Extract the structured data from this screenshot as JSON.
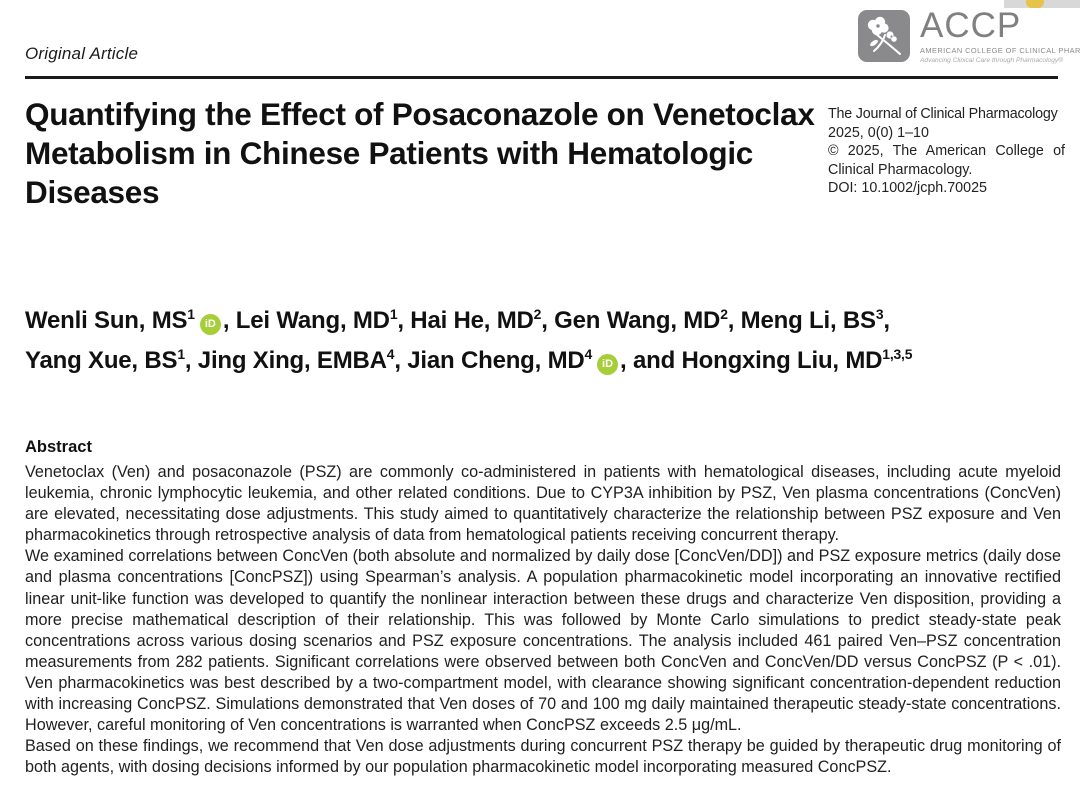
{
  "page": {
    "kicker": "Original Article"
  },
  "logo": {
    "acronym": "ACCP",
    "org_name": "American College of Clinical Pharmacology",
    "tagline": "Advancing Clinical Care through Pharmacology®",
    "gray": "#8a8a8c"
  },
  "title": "Quantifying the Effect of Posaconazole on Venetoclax Metabolism in Chinese Patients with Hematologic Diseases",
  "journal_info": {
    "name": "The Journal of Clinical Pharmacology",
    "issue": "2025, 0(0) 1–10",
    "copyright": "© 2025, The American College of Clinical Pharmacology.",
    "doi": "DOI: 10.1002/jcph.70025"
  },
  "authors": {
    "orcid_color": "#A6CE39",
    "lines": [
      [
        {
          "t": "Wenli Sun, MS"
        },
        {
          "sup": "1"
        },
        {
          "orcid": true
        },
        {
          "t": ", Lei Wang, MD"
        },
        {
          "sup": "1"
        },
        {
          "t": ", Hai He, MD"
        },
        {
          "sup": "2"
        },
        {
          "t": ", Gen Wang, MD"
        },
        {
          "sup": "2"
        },
        {
          "t": ", Meng Li, BS"
        },
        {
          "sup": "3"
        },
        {
          "t": ","
        }
      ],
      [
        {
          "t": "Yang Xue, BS"
        },
        {
          "sup": "1"
        },
        {
          "t": ", Jing Xing, EMBA"
        },
        {
          "sup": "4"
        },
        {
          "t": ", Jian Cheng, MD"
        },
        {
          "sup": "4"
        },
        {
          "orcid": true
        },
        {
          "t": ", and Hongxing Liu, MD"
        },
        {
          "sup": "1,3,5"
        }
      ]
    ]
  },
  "abstract": {
    "heading": "Abstract",
    "paragraphs": [
      "Venetoclax (Ven) and posaconazole (PSZ) are commonly co-administered in patients with hematological diseases, including acute myeloid leukemia, chronic lymphocytic leukemia, and other related conditions. Due to CYP3A inhibition by PSZ, Ven plasma concentrations (ConcVen) are elevated, necessitating dose adjustments. This study aimed to quantitatively characterize the relationship between PSZ exposure and Ven pharmacokinetics through retrospective analysis of data from hematological patients receiving concurrent therapy.",
      "We examined correlations between ConcVen (both absolute and normalized by daily dose [ConcVen/DD]) and PSZ exposure metrics (daily dose and plasma concentrations [ConcPSZ]) using Spearman’s analysis. A population pharmacokinetic model incorporating an innovative rectified linear unit-like function was developed to quantify the nonlinear interaction between these drugs and characterize Ven disposition, providing a more precise mathematical description of their relationship. This was followed by Monte Carlo simulations to predict steady-state peak concentrations across various dosing scenarios and PSZ exposure concentrations. The analysis included 461 paired Ven–PSZ concentration measurements from 282 patients. Significant correlations were observed between both ConcVen and ConcVen/DD versus ConcPSZ (P < .01). Ven pharmacokinetics was best described by a two-compartment model, with clearance showing significant concentration-dependent reduction with increasing ConcPSZ. Simulations demonstrated that Ven doses of 70 and 100 mg daily maintained therapeutic steady-state concentrations. However, careful monitoring of Ven concentrations is warranted when ConcPSZ exceeds 2.5 μg/mL.",
      "Based on these findings, we recommend that Ven dose adjustments during concurrent PSZ therapy be guided by therapeutic drug monitoring of both agents, with dosing decisions informed by our population pharmacokinetic model incorporating measured ConcPSZ."
    ]
  }
}
